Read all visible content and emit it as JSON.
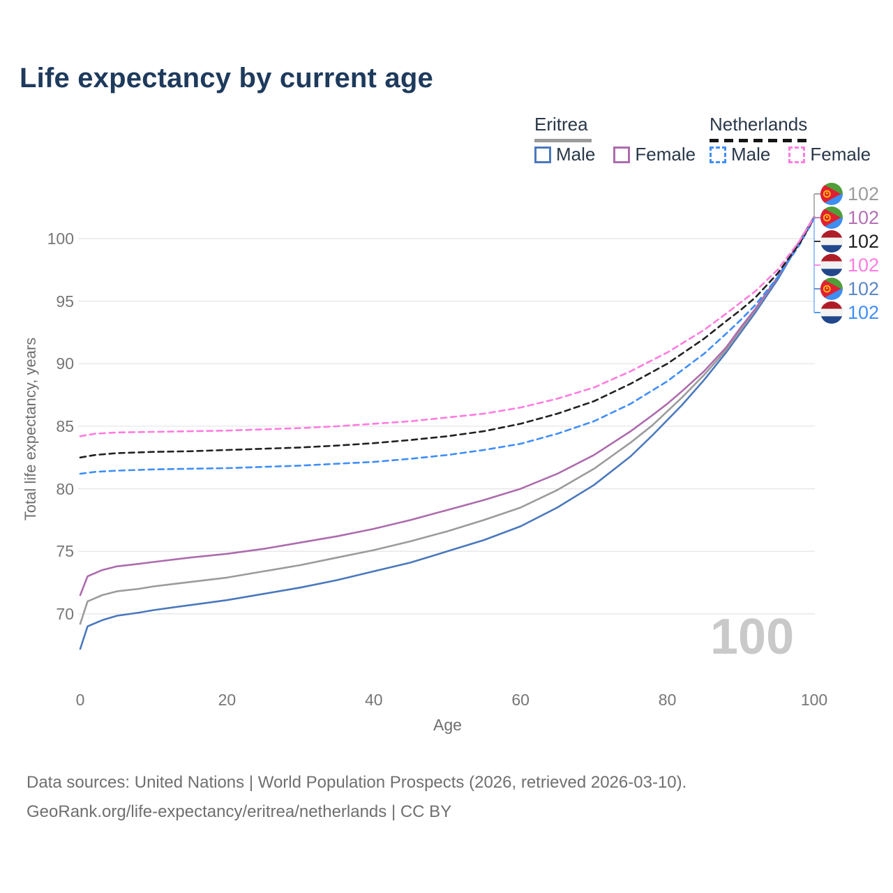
{
  "title": "Life expectancy by current age",
  "legend": {
    "eritrea": {
      "label": "Eritrea",
      "male_label": "Male",
      "female_label": "Female",
      "male_color": "#4a78bc",
      "female_color": "#ad6cad",
      "underline_color": "#9b9b9b"
    },
    "netherlands": {
      "label": "Netherlands",
      "male_label": "Male",
      "female_label": "Female",
      "male_color": "#3f8ef7",
      "female_color": "#ff7ce0",
      "underline_color": "#151515"
    }
  },
  "chart_data": {
    "type": "line",
    "title": "Life expectancy by current age",
    "xlabel": "Age",
    "ylabel": "Total life expectancy, years",
    "xlim": [
      0,
      100
    ],
    "ylim": [
      66,
      103
    ],
    "x_ticks": [
      0,
      20,
      40,
      60,
      80,
      100
    ],
    "y_ticks": [
      70,
      75,
      80,
      85,
      90,
      95,
      100
    ],
    "grid": "horizontal",
    "grid_color": "#e4e4e4",
    "series": [
      {
        "name": "Eritrea Male",
        "country": "Eritrea",
        "sex": "male",
        "color": "#4a78bc",
        "dashed": false,
        "end_label": "102",
        "points": [
          [
            0,
            67.2
          ],
          [
            1,
            69.0
          ],
          [
            3,
            69.5
          ],
          [
            5,
            69.85
          ],
          [
            8,
            70.1
          ],
          [
            10,
            70.3
          ],
          [
            15,
            70.7
          ],
          [
            20,
            71.1
          ],
          [
            25,
            71.6
          ],
          [
            30,
            72.1
          ],
          [
            35,
            72.7
          ],
          [
            40,
            73.4
          ],
          [
            45,
            74.1
          ],
          [
            50,
            75.0
          ],
          [
            55,
            75.9
          ],
          [
            60,
            77.0
          ],
          [
            65,
            78.5
          ],
          [
            70,
            80.3
          ],
          [
            75,
            82.6
          ],
          [
            78,
            84.3
          ],
          [
            80,
            85.5
          ],
          [
            82,
            86.7
          ],
          [
            85,
            88.7
          ],
          [
            88,
            90.9
          ],
          [
            90,
            92.5
          ],
          [
            92,
            94.1
          ],
          [
            95,
            96.7
          ],
          [
            98,
            99.7
          ],
          [
            100,
            101.7
          ]
        ]
      },
      {
        "name": "Eritrea Both sexes",
        "country": "Eritrea",
        "sex": "both",
        "color": "#9b9b9b",
        "dashed": false,
        "end_label": "102",
        "points": [
          [
            0,
            69.2
          ],
          [
            1,
            71.0
          ],
          [
            3,
            71.5
          ],
          [
            5,
            71.8
          ],
          [
            8,
            72.0
          ],
          [
            10,
            72.2
          ],
          [
            15,
            72.55
          ],
          [
            20,
            72.9
          ],
          [
            25,
            73.4
          ],
          [
            30,
            73.9
          ],
          [
            35,
            74.5
          ],
          [
            40,
            75.1
          ],
          [
            45,
            75.8
          ],
          [
            50,
            76.6
          ],
          [
            55,
            77.5
          ],
          [
            60,
            78.5
          ],
          [
            65,
            79.9
          ],
          [
            70,
            81.6
          ],
          [
            75,
            83.7
          ],
          [
            78,
            85.1
          ],
          [
            80,
            86.2
          ],
          [
            82,
            87.3
          ],
          [
            85,
            89.1
          ],
          [
            88,
            91.1
          ],
          [
            90,
            92.7
          ],
          [
            92,
            94.3
          ],
          [
            95,
            96.9
          ],
          [
            98,
            99.8
          ],
          [
            100,
            101.75
          ]
        ]
      },
      {
        "name": "Eritrea Female",
        "country": "Eritrea",
        "sex": "female",
        "color": "#ad6cad",
        "dashed": false,
        "end_label": "102",
        "points": [
          [
            0,
            71.5
          ],
          [
            1,
            73.0
          ],
          [
            3,
            73.5
          ],
          [
            5,
            73.8
          ],
          [
            8,
            74.0
          ],
          [
            10,
            74.15
          ],
          [
            15,
            74.5
          ],
          [
            20,
            74.8
          ],
          [
            25,
            75.2
          ],
          [
            30,
            75.7
          ],
          [
            35,
            76.2
          ],
          [
            40,
            76.8
          ],
          [
            45,
            77.5
          ],
          [
            50,
            78.3
          ],
          [
            55,
            79.1
          ],
          [
            60,
            80.0
          ],
          [
            65,
            81.2
          ],
          [
            70,
            82.7
          ],
          [
            75,
            84.6
          ],
          [
            78,
            85.9
          ],
          [
            80,
            86.8
          ],
          [
            82,
            87.8
          ],
          [
            85,
            89.4
          ],
          [
            88,
            91.3
          ],
          [
            90,
            92.9
          ],
          [
            92,
            94.4
          ],
          [
            95,
            96.9
          ],
          [
            98,
            99.8
          ],
          [
            100,
            101.75
          ]
        ]
      },
      {
        "name": "Netherlands Male",
        "country": "Netherlands",
        "sex": "male",
        "color": "#3f8ef7",
        "dashed": true,
        "end_label": "102",
        "points": [
          [
            0,
            81.2
          ],
          [
            2,
            81.35
          ],
          [
            5,
            81.45
          ],
          [
            10,
            81.55
          ],
          [
            15,
            81.6
          ],
          [
            20,
            81.65
          ],
          [
            25,
            81.75
          ],
          [
            30,
            81.85
          ],
          [
            35,
            82.0
          ],
          [
            40,
            82.15
          ],
          [
            45,
            82.4
          ],
          [
            50,
            82.7
          ],
          [
            55,
            83.1
          ],
          [
            60,
            83.6
          ],
          [
            65,
            84.4
          ],
          [
            70,
            85.4
          ],
          [
            75,
            86.8
          ],
          [
            80,
            88.6
          ],
          [
            85,
            90.8
          ],
          [
            88,
            92.4
          ],
          [
            90,
            93.5
          ],
          [
            92,
            94.7
          ],
          [
            95,
            96.9
          ],
          [
            98,
            99.5
          ],
          [
            100,
            101.6
          ]
        ]
      },
      {
        "name": "Netherlands Both sexes",
        "country": "Netherlands",
        "sex": "both",
        "color": "#212121",
        "dashed": true,
        "end_label": "102",
        "points": [
          [
            0,
            82.5
          ],
          [
            2,
            82.7
          ],
          [
            5,
            82.85
          ],
          [
            10,
            82.95
          ],
          [
            15,
            83.0
          ],
          [
            20,
            83.1
          ],
          [
            25,
            83.2
          ],
          [
            30,
            83.3
          ],
          [
            35,
            83.45
          ],
          [
            40,
            83.65
          ],
          [
            45,
            83.9
          ],
          [
            50,
            84.2
          ],
          [
            55,
            84.6
          ],
          [
            60,
            85.2
          ],
          [
            65,
            86.0
          ],
          [
            70,
            87.0
          ],
          [
            75,
            88.4
          ],
          [
            80,
            90.0
          ],
          [
            85,
            92.0
          ],
          [
            88,
            93.4
          ],
          [
            90,
            94.3
          ],
          [
            92,
            95.3
          ],
          [
            95,
            97.2
          ],
          [
            98,
            99.6
          ],
          [
            100,
            101.65
          ]
        ]
      },
      {
        "name": "Netherlands Female",
        "country": "Netherlands",
        "sex": "female",
        "color": "#ff7ce0",
        "dashed": true,
        "end_label": "102",
        "points": [
          [
            0,
            84.2
          ],
          [
            2,
            84.4
          ],
          [
            5,
            84.5
          ],
          [
            10,
            84.55
          ],
          [
            15,
            84.6
          ],
          [
            20,
            84.65
          ],
          [
            25,
            84.75
          ],
          [
            30,
            84.85
          ],
          [
            35,
            85.0
          ],
          [
            40,
            85.2
          ],
          [
            45,
            85.4
          ],
          [
            50,
            85.7
          ],
          [
            55,
            86.0
          ],
          [
            60,
            86.5
          ],
          [
            65,
            87.2
          ],
          [
            70,
            88.1
          ],
          [
            75,
            89.4
          ],
          [
            80,
            90.9
          ],
          [
            85,
            92.7
          ],
          [
            88,
            94.0
          ],
          [
            90,
            94.9
          ],
          [
            92,
            95.8
          ],
          [
            95,
            97.5
          ],
          [
            98,
            99.8
          ],
          [
            100,
            101.7
          ]
        ]
      }
    ],
    "legend_position": "top-right"
  },
  "right_labels": [
    {
      "flag": "eritrea",
      "text": "102",
      "color": "#9b9b9b",
      "series": "Eritrea Both sexes"
    },
    {
      "flag": "eritrea",
      "text": "102",
      "color": "#b470b4",
      "series": "Eritrea Female"
    },
    {
      "flag": "netherlands",
      "text": "102",
      "color": "#1f1f1f",
      "series": "Netherlands Both sexes"
    },
    {
      "flag": "netherlands",
      "text": "102",
      "color": "#ff7ce0",
      "series": "Netherlands Female"
    },
    {
      "flag": "eritrea",
      "text": "102",
      "color": "#5b87c7",
      "series": "Eritrea Male"
    },
    {
      "flag": "netherlands",
      "text": "102",
      "color": "#3f8ef7",
      "series": "Netherlands Male"
    }
  ],
  "watermark": "100",
  "footer": {
    "line1": "Data sources: United Nations | World Population Prospects (2026, retrieved 2026-03-10).",
    "line2": "GeoRank.org/life-expectancy/eritrea/netherlands | CC BY"
  }
}
